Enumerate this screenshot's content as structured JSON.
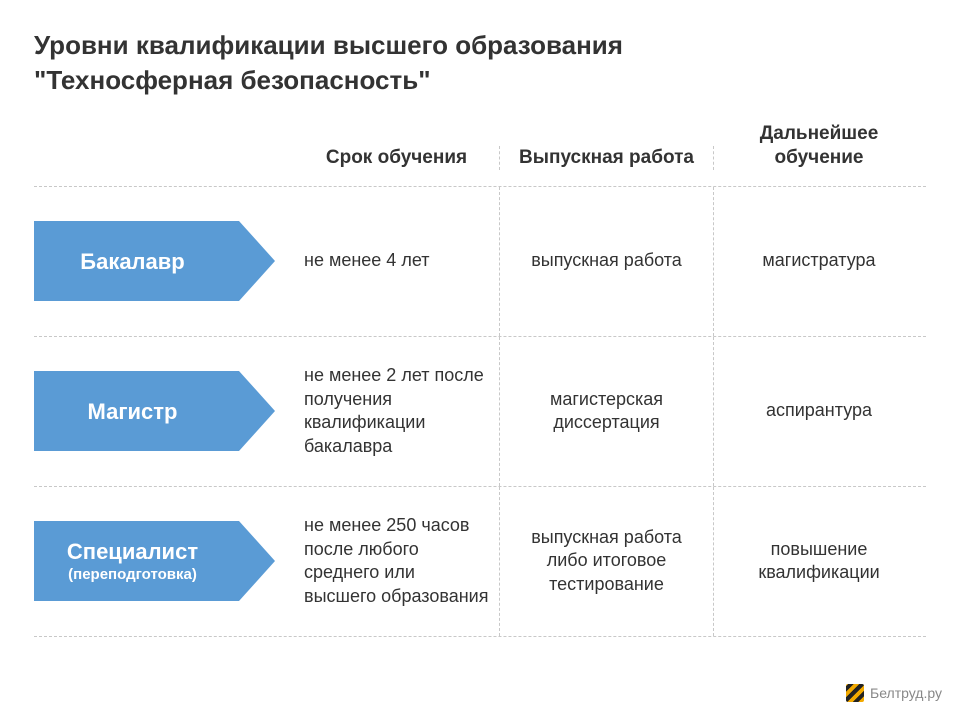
{
  "title_line1": "Уровни квалификации высшего образования",
  "title_line2": "\"Техносферная безопасность\"",
  "columns": {
    "a": "Срок обучения",
    "b": "Выпускная работа",
    "c": "Дальнейшее обучение"
  },
  "rows": [
    {
      "label": "Бакалавр",
      "sub": "",
      "a": "не менее 4 лет",
      "b": "выпускная работа",
      "c": "магистратура"
    },
    {
      "label": "Магистр",
      "sub": "",
      "a": "не менее 2 лет после получения квалификации бакалавра",
      "b": "магистерская диссертация",
      "c": "аспирантура"
    },
    {
      "label": "Специалист",
      "sub": "(переподготовка)",
      "a": "не менее 250 часов после любого среднего или высшего образования",
      "b": "выпускная работа либо итоговое тестирование",
      "c": "повышение квалификации"
    }
  ],
  "styling": {
    "arrow_color": "#5a9bd5",
    "arrow_text_color": "#ffffff",
    "border_style": "dashed",
    "border_color": "#c8c8c8",
    "title_fontsize": 26,
    "header_fontsize": 19,
    "cell_fontsize": 18,
    "arrow_label_fontsize": 22,
    "arrow_height": 80,
    "arrow_body_width": 205,
    "arrow_head_width": 36,
    "background_color": "#ffffff",
    "text_color": "#333333",
    "row_min_height": 150
  },
  "attribution": "Белтруд.ру"
}
